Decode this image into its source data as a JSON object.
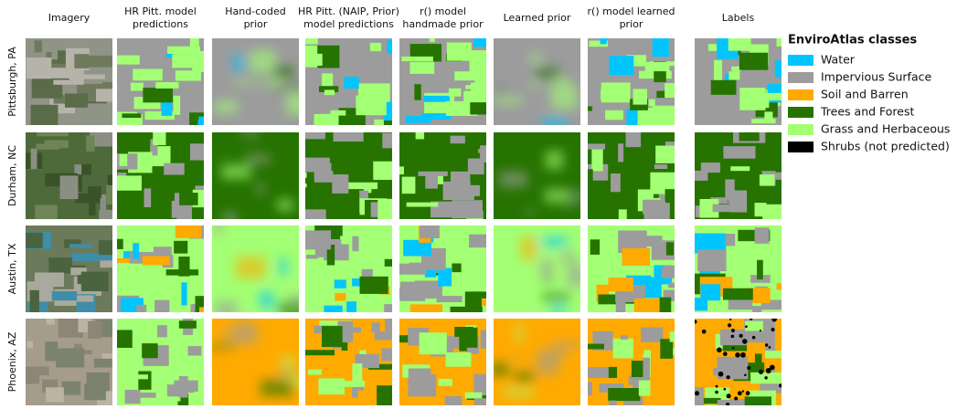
{
  "figure": {
    "column_headers": [
      [
        "Imagery"
      ],
      [
        "HR Pitt. model",
        "predictions"
      ],
      [
        "Hand-coded",
        "prior"
      ],
      [
        "HR Pitt. (NAIP, Prior)",
        "model predictions"
      ],
      [
        "r() model",
        "handmade prior"
      ],
      [
        "Learned prior"
      ],
      [
        "r() model learned",
        "prior"
      ],
      [
        "Labels"
      ]
    ],
    "row_labels": [
      "Pittsburgh, PA",
      "Durham, NC",
      "Austin, TX",
      "Phoenix, AZ"
    ],
    "legend": {
      "title": "EnviroAtlas classes",
      "entries": [
        {
          "name": "Water",
          "color": "#00c5ff"
        },
        {
          "name": "Impervious Surface",
          "color": "#9c9c9c"
        },
        {
          "name": "Soil and Barren",
          "color": "#ffaa00"
        },
        {
          "name": "Trees and Forest",
          "color": "#267300"
        },
        {
          "name": "Grass and Herbaceous",
          "color": "#a3ff73"
        },
        {
          "name": "Shrubs (not predicted)",
          "color": "#000000"
        }
      ]
    }
  }
}
